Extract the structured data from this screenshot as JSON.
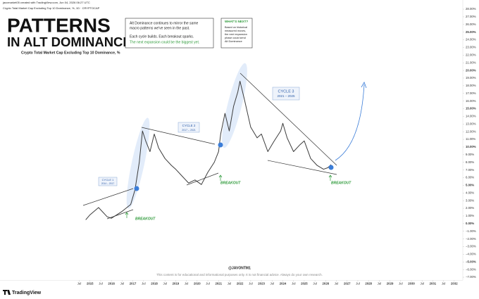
{
  "header": {
    "byline": "jaccmarket05 created with TradingView.com, Jun 04, 2026 06:27 UTC",
    "symbol": "Crypto Total Market Cap Excluding Top 10 Dominance, %, 1D · CRYPTOCAP"
  },
  "title": {
    "line1": "PATTERNS",
    "line2": "IN ALT DOMINANCE",
    "subtitle": "Crypto Total Market Cap Excluding Top 10 Dominance, %"
  },
  "summary_box": {
    "lines": [
      "Alt Dominance continues to mirror the same",
      "macro patterns we've seen in the past."
    ],
    "line3": "Each cycle builds. Each breakout sparks.",
    "highlight": "The next expansion could be the biggest yet."
  },
  "next_box": {
    "heading": "WHAT'S NEXT?",
    "lines": [
      "Based on historical",
      "measured moves,",
      "the next expansion",
      "phase could send",
      "Alt Dominance"
    ]
  },
  "cycles": [
    {
      "name": "CYCLE 1",
      "years": "2014 – 2017"
    },
    {
      "name": "CYCLE 2",
      "years": "2017 – 2021"
    },
    {
      "name": "CYCLE 3",
      "years": "2021 – 2025"
    }
  ],
  "breakouts": [
    "BREAKOUT",
    "BREAKOUT",
    "BREAKOUT"
  ],
  "watermark": "@JAVONTM1",
  "disclaimer": "This content is for educational and informational purposes only. It is not financial advice. Always do your own research.",
  "footer": {
    "brand": "TradingView"
  },
  "chart_data": {
    "type": "line",
    "color": "#3c3c3c",
    "x": [
      2014.8,
      2015.0,
      2015.4,
      2015.8,
      2016.0,
      2016.5,
      2016.9,
      2017.1,
      2017.3,
      2017.45,
      2017.6,
      2017.8,
      2018.0,
      2018.2,
      2018.5,
      2018.8,
      2019.0,
      2019.3,
      2019.6,
      2019.9,
      2020.2,
      2020.5,
      2020.8,
      2021.0,
      2021.1,
      2021.3,
      2021.5,
      2021.7,
      2021.9,
      2022.0,
      2022.2,
      2022.5,
      2022.8,
      2023.0,
      2023.3,
      2023.6,
      2023.9,
      2024.0,
      2024.2,
      2024.5,
      2024.8,
      2025.0,
      2025.3,
      2025.6,
      2025.9,
      2026.1,
      2026.25
    ],
    "values": [
      0.5,
      1.15,
      2.1,
      0.9,
      0.7,
      1.6,
      2.5,
      4.4,
      8,
      12.1,
      10.8,
      9.4,
      11.7,
      9.9,
      8.5,
      7.6,
      7.1,
      6.2,
      5.3,
      5.7,
      5.1,
      6.7,
      8.0,
      9.4,
      11.7,
      14.4,
      12.1,
      15.3,
      17.2,
      18.6,
      16.3,
      12.6,
      11.2,
      11.7,
      9.4,
      10.8,
      12.1,
      13.1,
      11.2,
      9.4,
      10.3,
      10.8,
      8.5,
      7.6,
      7.1,
      7.3,
      7.7
    ],
    "xlim": [
      2010.8,
      2032.4
    ],
    "xticks": [
      {
        "value": 2014.5,
        "label": "Jul"
      },
      2015,
      {
        "value": 2015.5,
        "label": "Jul"
      },
      2016,
      {
        "value": 2016.5,
        "label": "Jul"
      },
      2017,
      {
        "value": 2017.5,
        "label": "Jul"
      },
      2018,
      {
        "value": 2018.5,
        "label": "Jul"
      },
      2019,
      {
        "value": 2019.5,
        "label": "Jul"
      },
      2020,
      {
        "value": 2020.5,
        "label": "Jul"
      },
      2021,
      {
        "value": 2021.5,
        "label": "Jul"
      },
      2022,
      {
        "value": 2022.5,
        "label": "Jul"
      },
      2023,
      {
        "value": 2023.5,
        "label": "Jul"
      },
      2024,
      {
        "value": 2024.5,
        "label": "Jul"
      },
      2025,
      {
        "value": 2025.5,
        "label": "Jul"
      },
      2026,
      {
        "value": 2026.5,
        "label": "Jul"
      },
      2027,
      {
        "value": 2027.5,
        "label": "Jul"
      },
      2028,
      {
        "value": 2028.5,
        "label": "Jul"
      },
      2029,
      {
        "value": 2029.5,
        "label": "Jul"
      },
      2030,
      {
        "value": 2030.5,
        "label": "Jul"
      },
      2031,
      {
        "value": 2031.5,
        "label": "Jul"
      },
      2032
    ],
    "ylim": [
      -7.4,
      28.6
    ],
    "yticks": [
      {
        "value": 28,
        "label": "28.00%"
      },
      {
        "value": 27,
        "label": "27.00%"
      },
      {
        "value": 26,
        "label": "26.00%"
      },
      {
        "value": 25,
        "label": "25.00%"
      },
      {
        "value": 24,
        "label": "24.00%"
      },
      {
        "value": 23,
        "label": "23.00%"
      },
      {
        "value": 22,
        "label": "22.00%"
      },
      {
        "value": 21,
        "label": "21.00%"
      },
      {
        "value": 20,
        "label": "20.00%"
      },
      {
        "value": 19,
        "label": "19.00%"
      },
      {
        "value": 18,
        "label": "18.00%"
      },
      {
        "value": 17,
        "label": "17.00%"
      },
      {
        "value": 16,
        "label": "16.00%"
      },
      {
        "value": 15,
        "label": "15.00%"
      },
      {
        "value": 14,
        "label": "14.00%"
      },
      {
        "value": 13,
        "label": "13.00%"
      },
      {
        "value": 12,
        "label": "12.00%"
      },
      {
        "value": 11,
        "label": "11.00%"
      },
      {
        "value": 10,
        "label": "10.00%"
      },
      {
        "value": 9,
        "label": "9.00%"
      },
      {
        "value": 8,
        "label": "8.00%"
      },
      {
        "value": 7,
        "label": "7.00%"
      },
      {
        "value": 6,
        "label": "6.00%"
      },
      {
        "value": 5,
        "label": "5.00%"
      },
      {
        "value": 4,
        "label": "4.00%"
      },
      {
        "value": 3,
        "label": "3.00%"
      },
      {
        "value": 2,
        "label": "2.00%"
      },
      {
        "value": 1,
        "label": "1.00%"
      },
      {
        "value": 0,
        "label": "0.00%"
      },
      {
        "value": -1,
        "label": "−1.00%"
      },
      {
        "value": -2,
        "label": "−2.00%"
      },
      {
        "value": -3,
        "label": "−3.00%"
      },
      {
        "value": -4,
        "label": "−4.00%"
      },
      {
        "value": -5,
        "label": "−5.00%"
      },
      {
        "value": -6,
        "label": "−6.00%"
      },
      {
        "value": -7,
        "label": "−7.00%"
      }
    ]
  }
}
